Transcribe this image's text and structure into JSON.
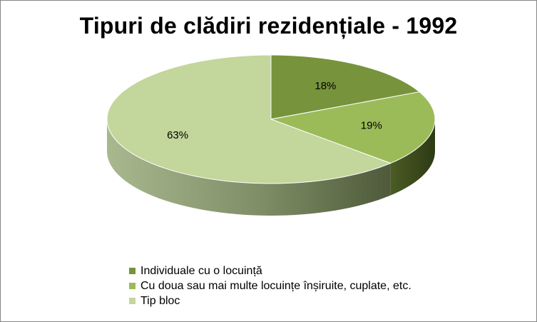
{
  "chart_data": {
    "type": "pie",
    "title": "Tipuri de clădiri rezidențiale - 1992",
    "slices": [
      {
        "name": "Individuale cu o locuință",
        "value": 18,
        "label": "18%",
        "color": "#77933c",
        "side_color": "#4f6228"
      },
      {
        "name": "Cu doua sau mai multe locuințe înșiruite, cuplate, etc.",
        "value": 19,
        "label": "19%",
        "color": "#9bbb59",
        "side_color": "#3d4a22"
      },
      {
        "name": "Tip bloc",
        "value": 63,
        "label": "63%",
        "color": "#c3d69b",
        "side_color": "#7a8a5e"
      }
    ],
    "legend_position": "bottom"
  }
}
